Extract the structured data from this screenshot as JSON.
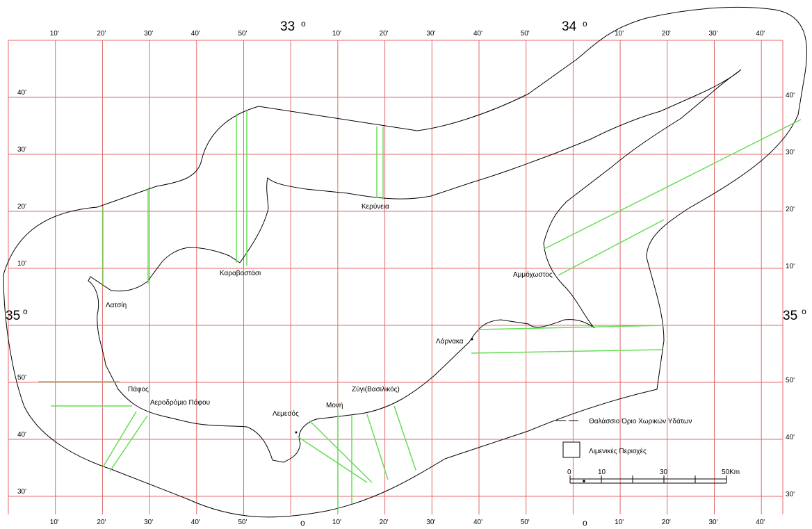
{
  "colors": {
    "grid": "#e06a6a",
    "coast": "#000000",
    "port": "#66dd55"
  },
  "top_minutes": [
    "10'",
    "20'",
    "30'",
    "40'",
    "50'",
    "",
    "10'",
    "20'",
    "30'",
    "40'",
    "50'",
    "",
    "10'",
    "20'",
    "30'",
    "40'"
  ],
  "bottom_minutes": [
    "10'",
    "20'",
    "30'",
    "40'",
    "50'",
    "",
    "10'",
    "20'",
    "30'",
    "40'",
    "50'",
    "",
    "10'",
    "20'",
    "30'",
    "40'"
  ],
  "lat_left": [
    "40'",
    "30'",
    "20'",
    "10'",
    "",
    "50'",
    "40'",
    "30'"
  ],
  "lat_right": [
    "40'",
    "30'",
    "20'",
    "10'",
    "",
    "50'",
    "40'",
    "30'"
  ],
  "degrees": {
    "lon33": "33",
    "lon34": "34",
    "lat35_left": "35",
    "lat35_right": "35",
    "deg_symbol": "o"
  },
  "places": {
    "kyrenia": "Κερύνεια",
    "karavostasi": "Καραβοστάσι",
    "latsi": "Λατσίη",
    "famagusta": "Αμμόχωστος",
    "larnaca": "Λάρνακα",
    "paphos": "Πάφος",
    "paphos_airport": "Αεροδρόμιο Πάφου",
    "zygi": "Ζύγι(Βασιλικός)",
    "moni": "Μονή",
    "limassol": "Λεμεσός"
  },
  "legend": {
    "boundary_label": "Θαλάσσιο Όριο Χωρικών Υδάτων",
    "port_label": "Λιμενικές Περιοχές"
  },
  "scale_bar": {
    "labels": [
      "0",
      "10",
      "30",
      "50Km"
    ]
  }
}
